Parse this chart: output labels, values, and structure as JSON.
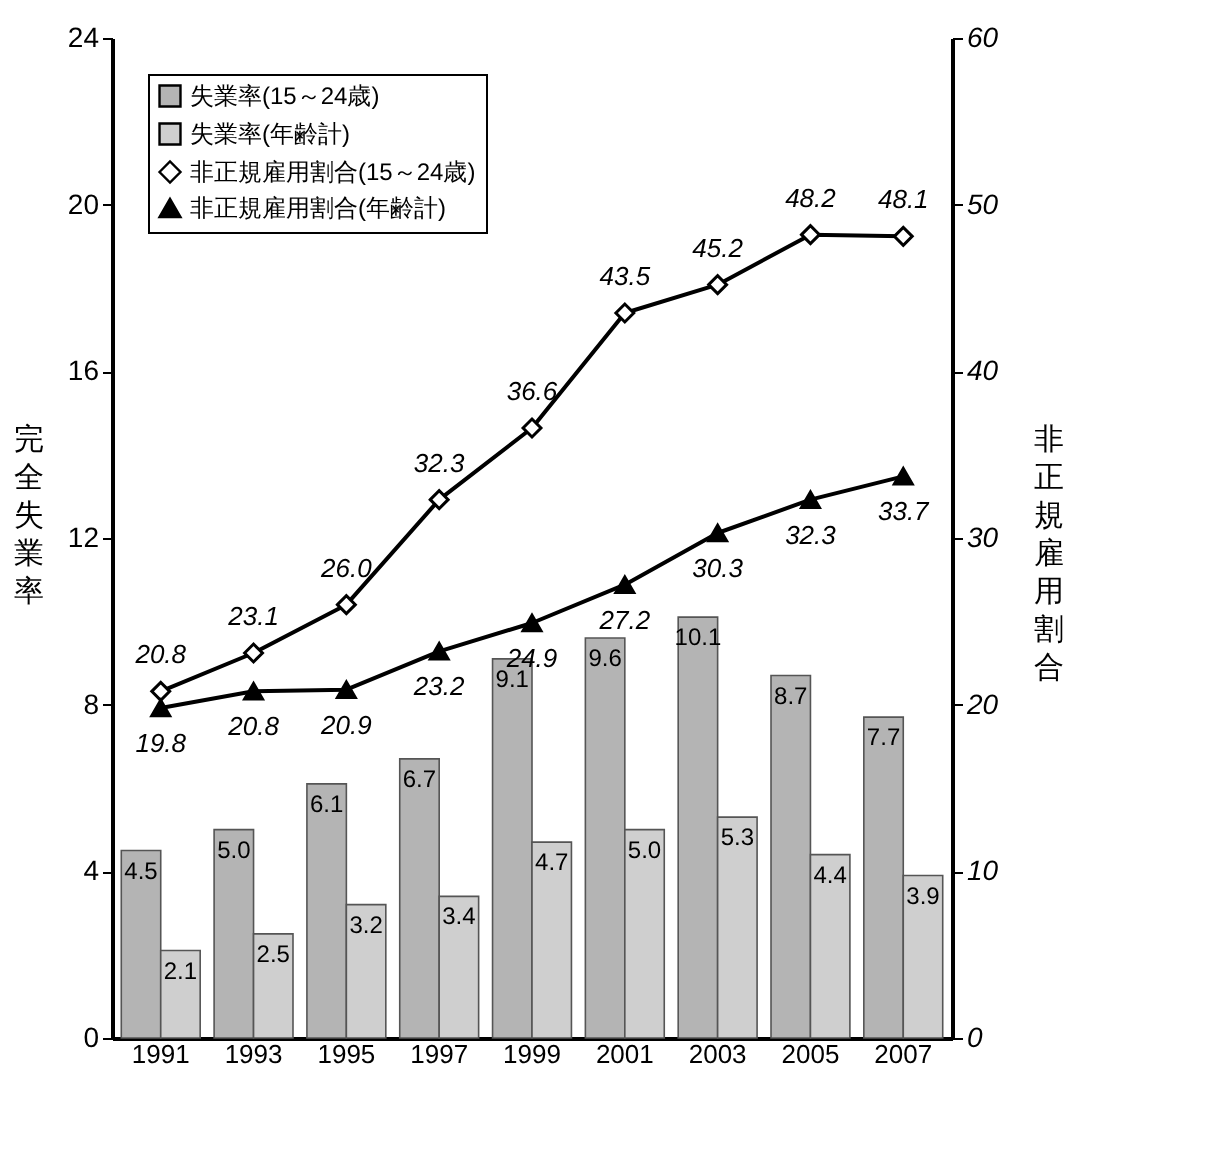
{
  "chart_data": {
    "type": "bar",
    "ylabel": "完全失業率",
    "y2label": "非正規雇用割合",
    "categories": [
      "1991",
      "1993",
      "1995",
      "1997",
      "1999",
      "2001",
      "2003",
      "2005",
      "2007"
    ],
    "series": [
      {
        "name": "失業率(15～24歳)",
        "color": "#b4b4b4",
        "values": [
          4.5,
          5.0,
          6.1,
          6.7,
          9.1,
          9.6,
          10.1,
          8.7,
          7.7
        ],
        "value_labels": [
          "4.5",
          "5.0",
          "6.1",
          "6.7",
          "9.1",
          "9.6",
          "10.1",
          "8.7",
          "7.7"
        ]
      },
      {
        "name": "失業率(年齢計)",
        "color": "#cfcfcf",
        "values": [
          2.1,
          2.5,
          3.2,
          3.4,
          4.7,
          5.0,
          5.3,
          4.4,
          3.9
        ],
        "value_labels": [
          "2.1",
          "2.5",
          "3.2",
          "3.4",
          "4.7",
          "5.0",
          "5.3",
          "4.4",
          "3.9"
        ]
      },
      {
        "name": "非正規雇用割合(15～24歳)",
        "type": "line",
        "axis": "y2",
        "marker": "diamond",
        "color": "#000000",
        "values": [
          20.8,
          23.1,
          26.0,
          32.3,
          36.6,
          43.5,
          45.2,
          48.2,
          48.1
        ],
        "value_labels": [
          "20.8",
          "23.1",
          "26.0",
          "32.3",
          "36.6",
          "43.5",
          "45.2",
          "48.2",
          "48.1"
        ]
      },
      {
        "name": "非正規雇用割合(年齢計)",
        "type": "line",
        "axis": "y2",
        "marker": "triangle",
        "color": "#000000",
        "values": [
          19.8,
          20.8,
          20.9,
          23.2,
          24.9,
          27.2,
          30.3,
          32.3,
          33.7
        ],
        "value_labels": [
          "19.8",
          "20.8",
          "20.9",
          "23.2",
          "24.9",
          "27.2",
          "30.3",
          "32.3",
          "33.7"
        ]
      }
    ],
    "ylim": [
      0,
      24
    ],
    "yticks": [
      0,
      4,
      8,
      12,
      16,
      20,
      24
    ],
    "y2lim": [
      0,
      60
    ],
    "y2ticks": [
      0,
      10,
      20,
      30,
      40,
      50,
      60
    ],
    "grid": false,
    "legend": "top left"
  }
}
